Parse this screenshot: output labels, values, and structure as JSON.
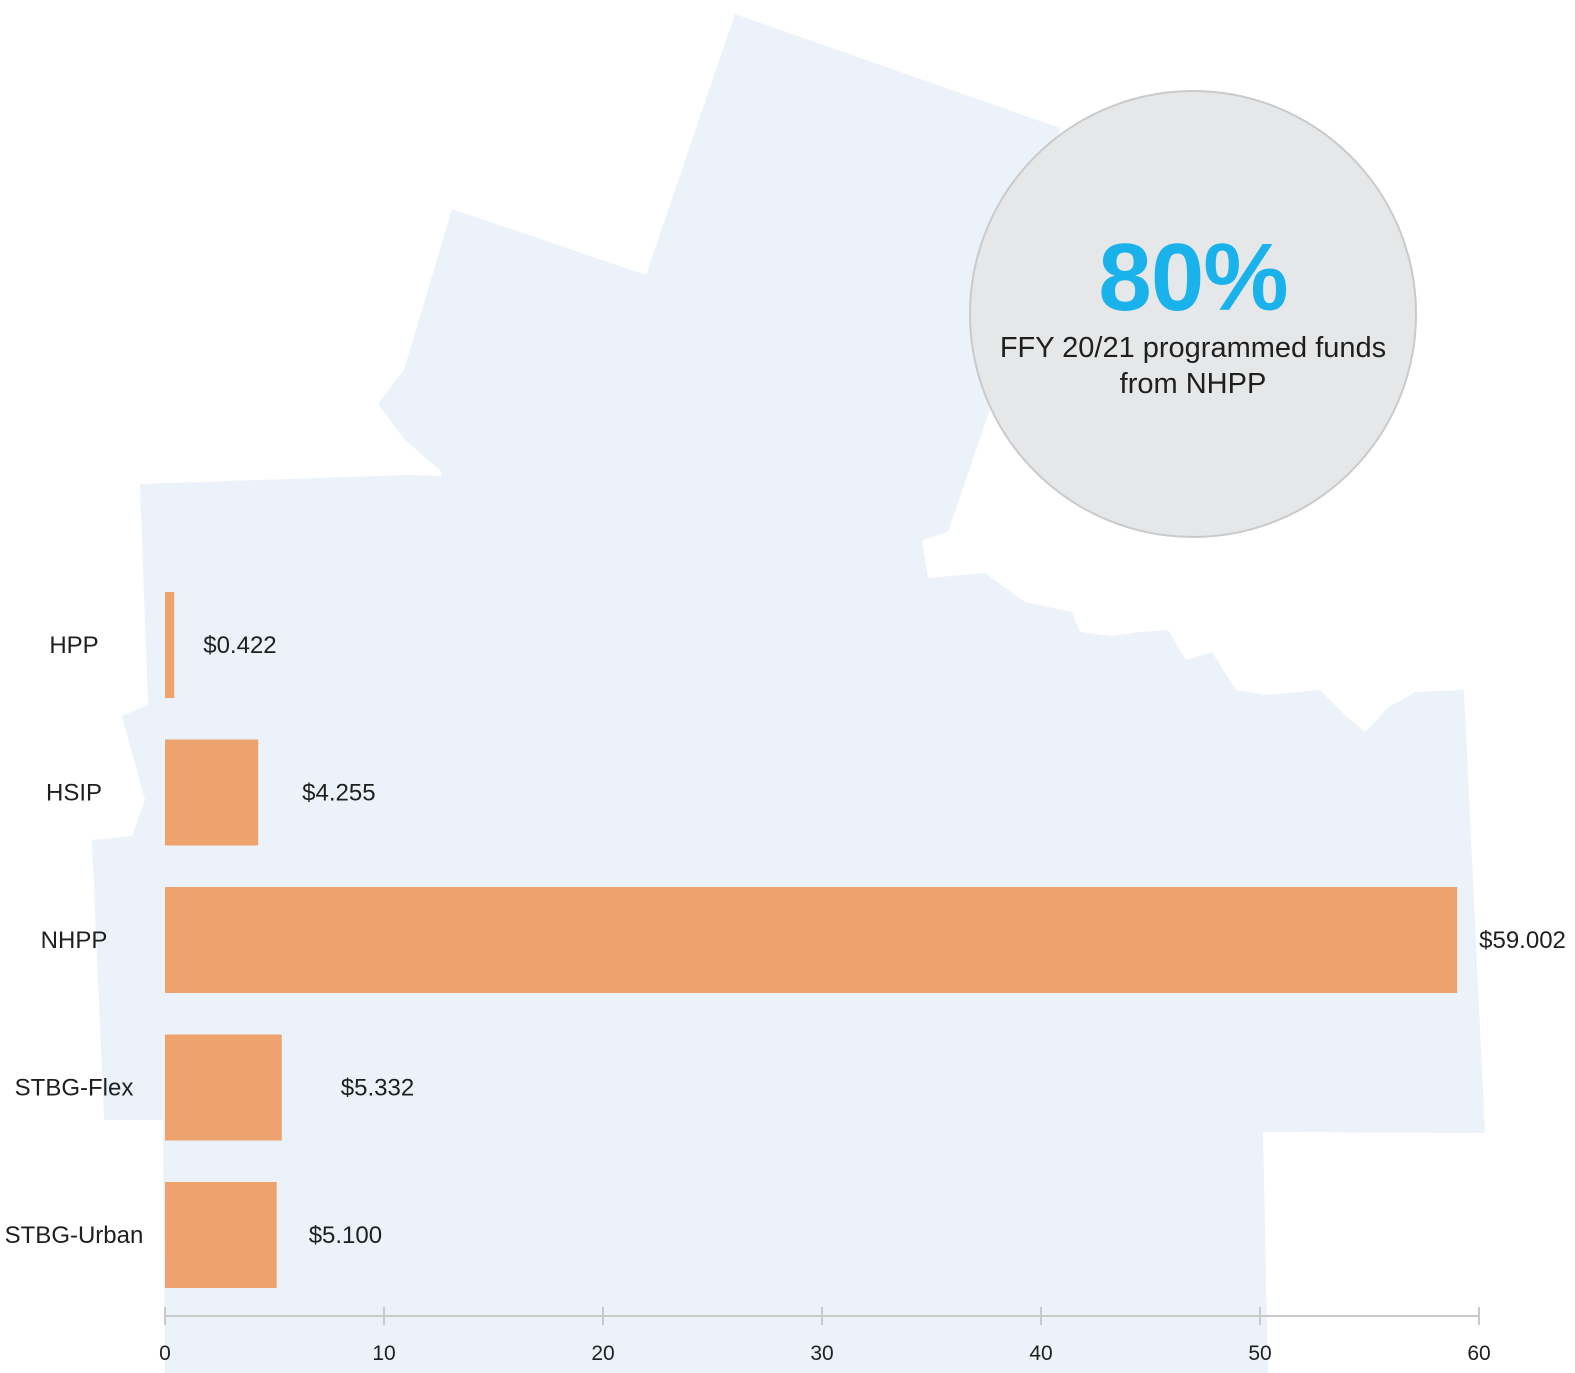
{
  "chart_data": {
    "type": "bar",
    "orientation": "horizontal",
    "categories": [
      "HPP",
      "HSIP",
      "NHPP",
      "STBG-Flex",
      "STBG-Urban"
    ],
    "values": [
      0.422,
      4.255,
      59.002,
      5.332,
      5.1
    ],
    "value_labels": [
      "$0.422",
      "$4.255",
      "$59.002",
      "$5.332",
      "$5.100"
    ],
    "xlim": [
      0,
      60
    ],
    "xticks": [
      0,
      10,
      20,
      30,
      40,
      50,
      60
    ],
    "grid": false,
    "title": "",
    "xlabel": "",
    "ylabel": ""
  },
  "callout": {
    "value": "80%",
    "text_line1": "FFY 20/21 programmed funds",
    "text_line2": "from NHPP"
  },
  "colors": {
    "bar": "#eea36e",
    "callout_value": "#1ab2ea",
    "callout_fill": "#e6e7e8",
    "background_map": "#ebf2fa",
    "axis": "#c8c9ca"
  }
}
